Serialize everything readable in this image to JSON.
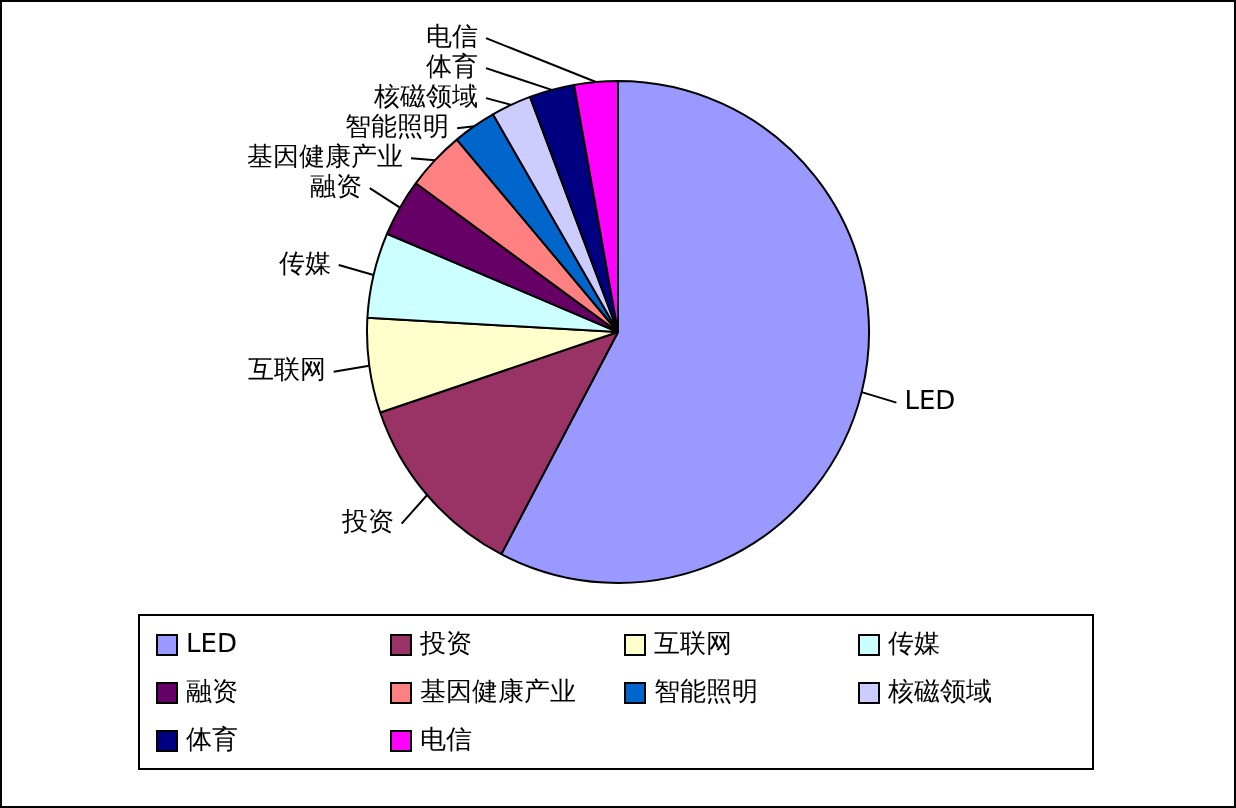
{
  "chart_data": {
    "type": "pie",
    "categories": [
      "LED",
      "投资",
      "互联网",
      "传媒",
      "融资",
      "基因健康产业",
      "智能照明",
      "核磁领域",
      "体育",
      "电信"
    ],
    "values": [
      57.7,
      12.1,
      6.1,
      5.5,
      3.7,
      3.8,
      2.8,
      2.6,
      2.9,
      2.8
    ],
    "colors": [
      "#9999ff",
      "#993366",
      "#ffffcc",
      "#ccffff",
      "#660066",
      "#ff8080",
      "#0066cc",
      "#ccccff",
      "#000080",
      "#ff00ff"
    ],
    "legend": "bottom"
  }
}
